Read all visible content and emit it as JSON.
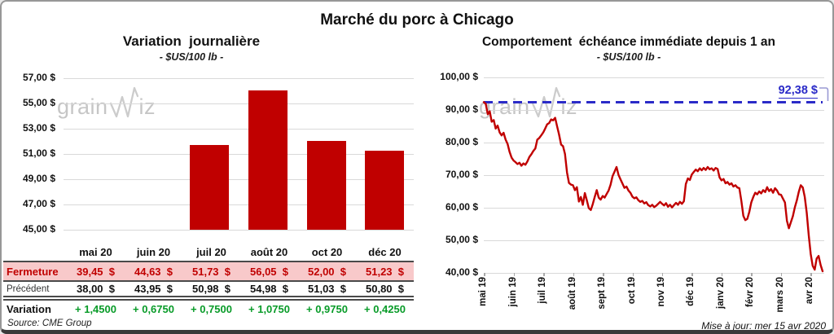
{
  "header": {
    "title": "Marché du porc à Chicago"
  },
  "watermark": {
    "part1": "grain",
    "part2": "iz"
  },
  "left_panel": {
    "title": "Variation  journalière",
    "subtitle": "- $US/100 lb -",
    "table": {
      "columns": [
        "mai 20",
        "juin 20",
        "juil 20",
        "août 20",
        "oct 20",
        "déc 20"
      ],
      "rows": [
        {
          "label": "Fermeture",
          "values": [
            "39,45  $",
            "44,63  $",
            "51,73  $",
            "56,05  $",
            "52,00  $",
            "51,23  $"
          ]
        },
        {
          "label": "Précédent",
          "values": [
            "38,00  $",
            "43,95  $",
            "50,98  $",
            "54,98  $",
            "51,03  $",
            "50,80  $"
          ]
        },
        {
          "label": "Variation",
          "values": [
            "+ 1,4500",
            "+ 0,6750",
            "+ 0,7500",
            "+ 1,0750",
            "+ 0,9750",
            "+ 0,4250"
          ]
        }
      ]
    }
  },
  "right_panel": {
    "title": "Comportement  échéance immédiate depuis 1 an",
    "subtitle": "- $US/100 lb -",
    "reference_label": "92,38 $"
  },
  "footer": {
    "source": "Source: CME Group",
    "updated": "Mise à jour: mer 15 avr 2020"
  },
  "colors": {
    "series_red": "#C00000",
    "reference_blue": "#2B2BC8",
    "close_row_bg": "#F8C9CA",
    "variation_green": "#089B28",
    "gridline": "#d9d9d9"
  },
  "chart_data": [
    {
      "type": "bar",
      "title": "Variation journalière",
      "subtitle": "- $US/100 lb -",
      "ylabel": "$US/100 lb",
      "categories": [
        "mai 20",
        "juin 20",
        "juil 20",
        "août 20",
        "oct 20",
        "déc 20"
      ],
      "values": [
        39.45,
        44.63,
        51.73,
        56.05,
        52.0,
        51.23
      ],
      "ylim": [
        45,
        57
      ],
      "y_ticks": [
        "57,00 $",
        "55,00 $",
        "53,00 $",
        "51,00 $",
        "49,00 $",
        "47,00 $",
        "45,00 $"
      ],
      "bar_color": "#C00000",
      "grid": true,
      "legend": "none"
    },
    {
      "type": "line",
      "title": "Comportement échéance immédiate depuis 1 an",
      "subtitle": "- $US/100 lb -",
      "ylabel": "$US/100 lb",
      "x_tick_labels": [
        "mai 19",
        "juin 19",
        "juil 19",
        "août 19",
        "sept 19",
        "oct 19",
        "nov 19",
        "déc 19",
        "janv 20",
        "févr 20",
        "mars 20",
        "avr 20"
      ],
      "points_per_tick": 15,
      "ylim": [
        40,
        100
      ],
      "y_ticks": [
        "100,00 $",
        "90,00 $",
        "80,00 $",
        "70,00 $",
        "60,00 $",
        "50,00 $",
        "40,00 $"
      ],
      "line_color": "#C00000",
      "grid": true,
      "legend": "none",
      "ref_line": {
        "value": 92.38,
        "label": "92,38 $",
        "color": "#2B2BC8"
      },
      "values": [
        92.4,
        91.9,
        88.7,
        89.6,
        86.4,
        86.9,
        84.3,
        85.2,
        83.1,
        82.2,
        83.0,
        80.9,
        79.6,
        77.2,
        75.4,
        74.5,
        74.0,
        73.4,
        73.8,
        72.9,
        73.6,
        73.2,
        74.2,
        75.6,
        76.4,
        77.4,
        78.2,
        80.9,
        81.4,
        82.2,
        83.1,
        84.3,
        85.6,
        86.0,
        87.1,
        86.8,
        87.6,
        85.0,
        82.5,
        79.4,
        78.9,
        76.5,
        70.8,
        67.6,
        67.1,
        66.9,
        65.4,
        66.3,
        61.9,
        63.3,
        60.9,
        64.5,
        62.3,
        59.9,
        59.3,
        61.1,
        63.3,
        65.4,
        63.1,
        62.5,
        63.6,
        63.1,
        64.2,
        65.3,
        67.1,
        69.7,
        71.1,
        72.5,
        70.1,
        68.7,
        67.4,
        66.1,
        66.5,
        65.3,
        64.6,
        63.4,
        62.9,
        63.2,
        62.3,
        61.8,
        62.1,
        61.3,
        61.7,
        60.8,
        60.4,
        60.9,
        60.2,
        60.6,
        61.2,
        61.8,
        61.2,
        60.7,
        61.4,
        60.3,
        60.9,
        60.1,
        60.8,
        61.5,
        60.9,
        61.8,
        61.2,
        62.0,
        67.3,
        69.0,
        68.5,
        70.2,
        71.0,
        71.7,
        71.2,
        72.1,
        71.5,
        72.2,
        71.6,
        72.5,
        71.8,
        72.1,
        71.4,
        72.2,
        71.9,
        69.3,
        68.4,
        68.8,
        67.5,
        67.9,
        67.1,
        67.5,
        66.5,
        66.9,
        66.2,
        66.0,
        62.0,
        57.5,
        56.2,
        56.6,
        58.7,
        61.6,
        63.3,
        64.6,
        64.1,
        65.0,
        64.4,
        65.4,
        64.8,
        66.3,
        65.1,
        65.7,
        64.6,
        66.0,
        65.3,
        64.1,
        64.0,
        62.8,
        61.6,
        56.0,
        53.7,
        55.6,
        57.4,
        60.1,
        62.3,
        64.9,
        66.9,
        66.2,
        63.3,
        58.5,
        51.5,
        45.8,
        42.2,
        41.0,
        44.4,
        45.2,
        42.4,
        40.5
      ]
    }
  ]
}
